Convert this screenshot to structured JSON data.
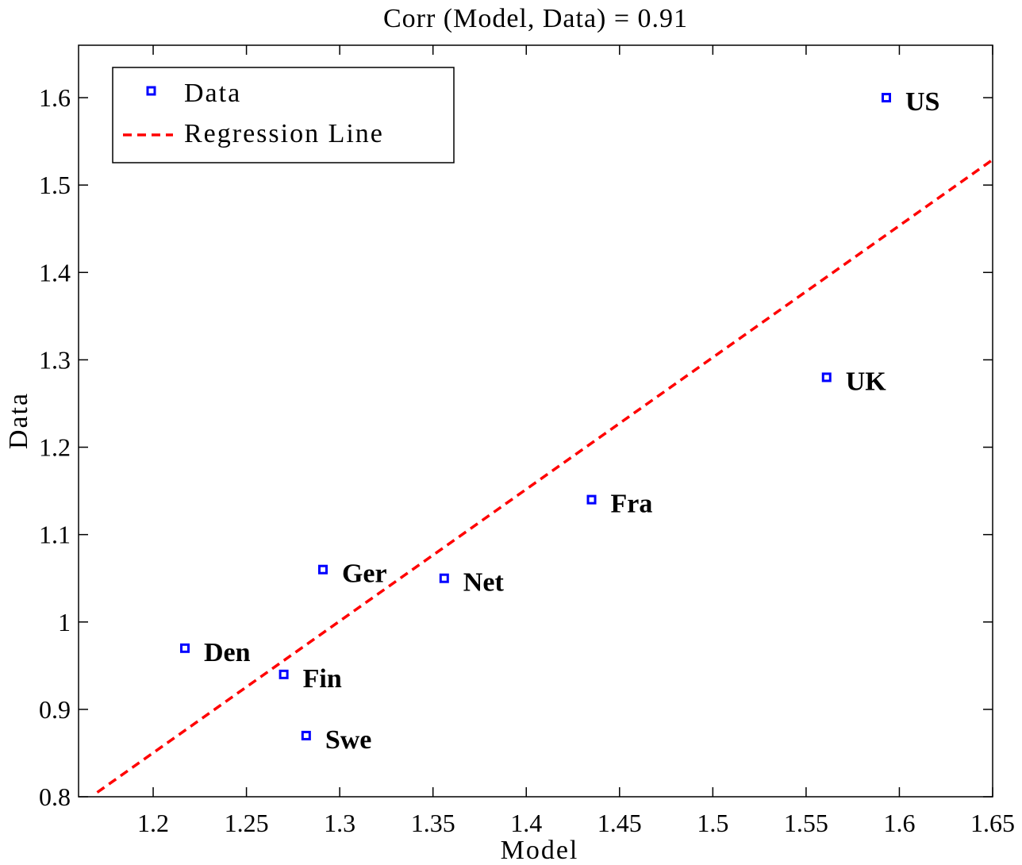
{
  "chart_data": {
    "type": "scatter",
    "title": "Corr (Model, Data) = 0.91",
    "xlabel": "Model",
    "ylabel": "Data",
    "xlim": [
      1.16,
      1.65
    ],
    "ylim": [
      0.8,
      1.66
    ],
    "xticks": [
      1.2,
      1.25,
      1.3,
      1.35,
      1.4,
      1.45,
      1.5,
      1.55,
      1.6,
      1.65
    ],
    "xtick_labels": [
      "1.2",
      "1.25",
      "1.3",
      "1.35",
      "1.4",
      "1.45",
      "1.5",
      "1.55",
      "1.6",
      "1.65"
    ],
    "yticks": [
      0.8,
      0.9,
      1.0,
      1.1,
      1.2,
      1.3,
      1.4,
      1.5,
      1.6
    ],
    "ytick_labels": [
      "0.8",
      "0.9",
      "1",
      "1.1",
      "1.2",
      "1.3",
      "1.4",
      "1.5",
      "1.6"
    ],
    "grid": false,
    "legend_placement": "top-left",
    "series": [
      {
        "name": "Data",
        "type": "scatter",
        "marker": "square",
        "color": "#0000ff",
        "points": [
          {
            "label": "US",
            "x": 1.593,
            "y": 1.6
          },
          {
            "label": "UK",
            "x": 1.561,
            "y": 1.28
          },
          {
            "label": "Fra",
            "x": 1.435,
            "y": 1.14
          },
          {
            "label": "Net",
            "x": 1.356,
            "y": 1.05
          },
          {
            "label": "Ger",
            "x": 1.291,
            "y": 1.06
          },
          {
            "label": "Den",
            "x": 1.217,
            "y": 0.97
          },
          {
            "label": "Fin",
            "x": 1.27,
            "y": 0.94
          },
          {
            "label": "Swe",
            "x": 1.282,
            "y": 0.87
          }
        ]
      },
      {
        "name": "Regression Line",
        "type": "line",
        "style": "dashed",
        "color": "#ff0000",
        "x": [
          1.17,
          1.65
        ],
        "y": [
          0.805,
          1.529
        ]
      }
    ]
  }
}
